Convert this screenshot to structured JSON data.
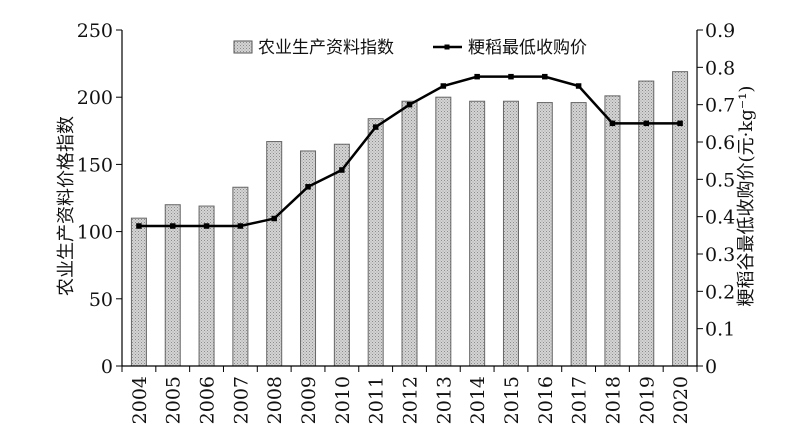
{
  "chart_data": {
    "type": "bar",
    "title": "",
    "categories": [
      "2004",
      "2005",
      "2006",
      "2007",
      "2008",
      "2009",
      "2010",
      "2011",
      "2012",
      "2013",
      "2014",
      "2015",
      "2016",
      "2017",
      "2018",
      "2019",
      "2020"
    ],
    "series": [
      {
        "name": "农业生产资料指数",
        "type": "bar",
        "axis": "left",
        "color": "#c8c8c8",
        "values": [
          110,
          120,
          119,
          133,
          167,
          160,
          165,
          184,
          197,
          200,
          197,
          197,
          196,
          196,
          201,
          212,
          219
        ]
      },
      {
        "name": "粳稻最低收购价",
        "type": "line",
        "axis": "right",
        "color": "#000000",
        "values": [
          0.375,
          0.375,
          0.375,
          0.375,
          0.395,
          0.48,
          0.525,
          0.64,
          0.7,
          0.75,
          0.775,
          0.775,
          0.775,
          0.75,
          0.65,
          0.65,
          0.65
        ]
      }
    ],
    "ylabel": "农业生产资料价格指数",
    "y2label": "粳稻谷最低收购价(元·kg⁻¹)",
    "ylim": [
      0,
      250
    ],
    "y2lim": [
      0,
      0.9
    ],
    "yticks": [
      "0",
      "50",
      "100",
      "150",
      "200",
      "250"
    ],
    "y2ticks": [
      "0",
      "0.1",
      "0.2",
      "0.3",
      "0.4",
      "0.5",
      "0.6",
      "0.7",
      "0.8",
      "0.9"
    ],
    "legend_position": "top-center",
    "grid": false
  }
}
